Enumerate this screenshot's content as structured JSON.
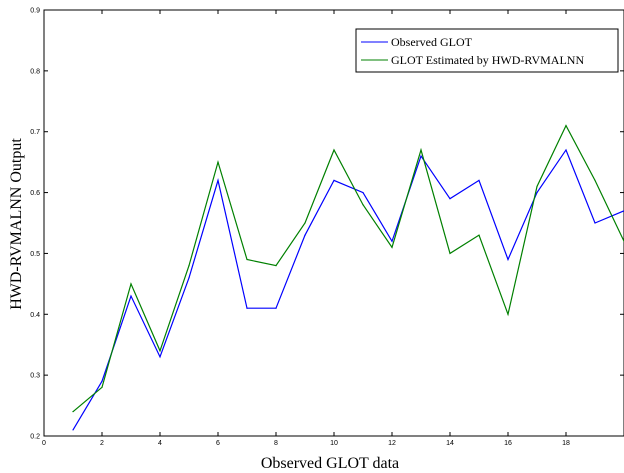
{
  "chart_data": {
    "type": "line",
    "title": "",
    "xlabel": "Observed GLOT data",
    "ylabel": "HWD-RVMALNN Output",
    "xlim": [
      0,
      20
    ],
    "ylim": [
      0.2,
      0.9
    ],
    "x_ticks": [
      "0",
      "2",
      "4",
      "6",
      "8",
      "10",
      "12",
      "14",
      "16",
      "18"
    ],
    "y_ticks": [
      "0.2",
      "0.3",
      "0.4",
      "0.5",
      "0.6",
      "0.7",
      "0.8",
      "0.9"
    ],
    "grid": false,
    "legend_position": "top-right",
    "x": [
      1,
      2,
      3,
      4,
      5,
      6,
      7,
      8,
      9,
      10,
      11,
      12,
      13,
      14,
      15,
      16,
      17,
      18,
      19,
      20
    ],
    "series": [
      {
        "name": "Observed GLOT",
        "color": "#0000ff",
        "values": [
          0.21,
          0.29,
          0.43,
          0.33,
          0.46,
          0.62,
          0.41,
          0.41,
          0.53,
          0.62,
          0.6,
          0.52,
          0.66,
          0.59,
          0.62,
          0.49,
          0.6,
          0.67,
          0.55,
          0.57
        ]
      },
      {
        "name": "GLOT Estimated by HWD-RVMALNN",
        "color": "#008000",
        "values": [
          0.24,
          0.28,
          0.45,
          0.34,
          0.48,
          0.65,
          0.49,
          0.48,
          0.55,
          0.67,
          0.58,
          0.51,
          0.67,
          0.5,
          0.53,
          0.4,
          0.61,
          0.71,
          0.62,
          0.52
        ]
      }
    ]
  }
}
